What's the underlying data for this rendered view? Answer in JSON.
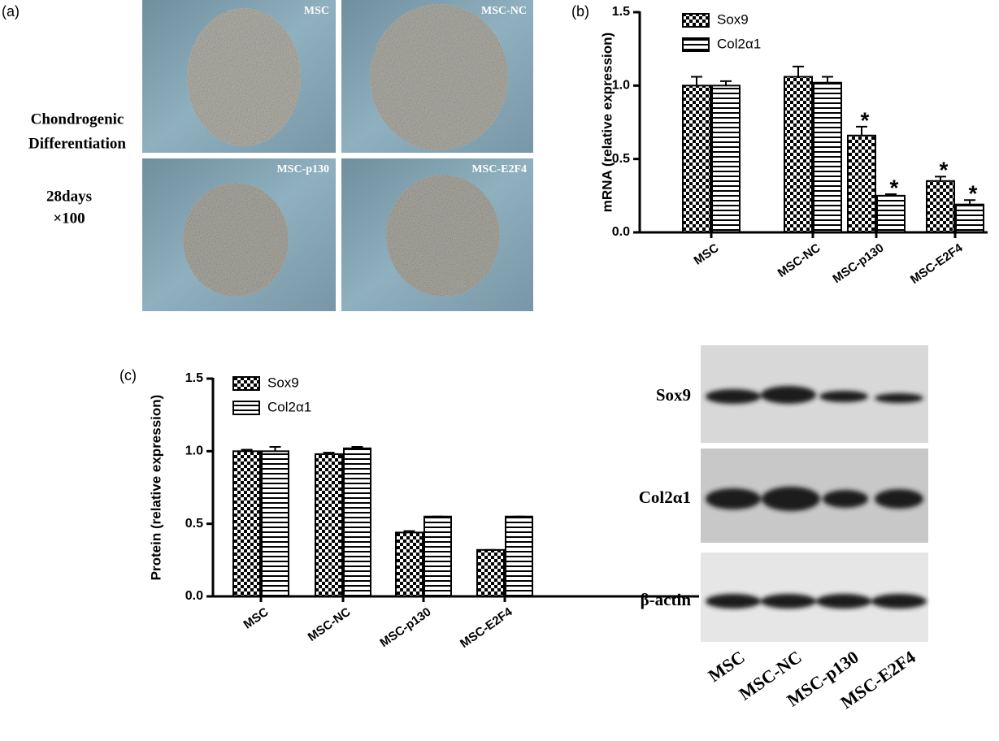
{
  "panel_labels": [
    "(a)",
    "(b)",
    "(c)"
  ],
  "micrographs": {
    "labels": [
      "MSC",
      "MSC-NC",
      "MSC-p130",
      "MSC-E2F4"
    ],
    "side_text": [
      "Chondrogenic",
      "Differentiation",
      "28days",
      "×100"
    ]
  },
  "blot": {
    "rows": [
      "Sox9",
      "Col2α1",
      "β-actin"
    ],
    "lanes": [
      "MSC",
      "MSC-NC",
      "MSC-p130",
      "MSC-E2F4"
    ]
  },
  "chart_data": [
    {
      "type": "bar",
      "y_label": "mRNA (relative expression)",
      "categories": [
        "MSC",
        "MSC-NC",
        "MSC-p130",
        "MSC-E2F4"
      ],
      "series": [
        {
          "name": "Sox9",
          "color": "#000000",
          "pattern": "checker",
          "values": [
            1.0,
            1.06,
            0.66,
            0.35
          ],
          "errors": [
            0.06,
            0.07,
            0.06,
            0.03
          ]
        },
        {
          "name": "Col2α1",
          "color": "#000000",
          "pattern": "hstripe",
          "values": [
            1.0,
            1.02,
            0.25,
            0.19
          ],
          "errors": [
            0.03,
            0.04,
            0.01,
            0.03
          ]
        }
      ],
      "annotations": [
        "*",
        "*",
        "*",
        "*"
      ],
      "ylim": [
        0,
        1.5
      ],
      "yticks": [
        {
          "value": 0,
          "label": "0.0"
        },
        {
          "value": 0.5,
          "label": "0.5"
        },
        {
          "value": 1,
          "label": "1.0"
        },
        {
          "value": 1.5,
          "label": "1.5"
        }
      ],
      "legend": "top-left"
    },
    {
      "type": "bar",
      "y_label": "Protein (relative expression)",
      "categories": [
        "MSC",
        "MSC-NC",
        "MSC-p130",
        "MSC-E2F4"
      ],
      "series": [
        {
          "name": "Sox9",
          "color": "#000000",
          "pattern": "checker",
          "values": [
            1.0,
            0.98,
            0.44,
            0.32
          ],
          "errors": [
            0.01,
            0.01,
            0.01,
            0
          ]
        },
        {
          "name": "Col2α1",
          "color": "#000000",
          "pattern": "hstripe",
          "values": [
            1.0,
            1.02,
            0.55,
            0.55
          ],
          "errors": [
            0.03,
            0.01,
            0,
            0
          ]
        }
      ],
      "ylim": [
        0,
        1.5
      ],
      "yticks": [
        {
          "value": 0,
          "label": "0.0"
        },
        {
          "value": 0.5,
          "label": "0.5"
        },
        {
          "value": 1,
          "label": "1.0"
        },
        {
          "value": 1.5,
          "label": "1.5"
        }
      ],
      "legend": "top-left"
    }
  ]
}
